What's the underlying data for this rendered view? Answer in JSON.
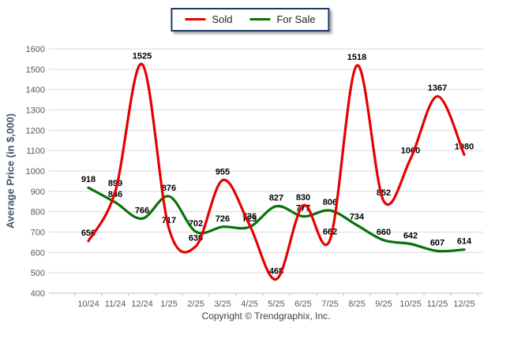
{
  "legend": {
    "items": [
      {
        "label": "Sold",
        "color": "#e60000"
      },
      {
        "label": "For Sale",
        "color": "#077307"
      }
    ],
    "border_color": "#1f3864"
  },
  "y_axis_title": "Average Price (in $,000)",
  "footer": "Copyright © Trendgraphix, Inc.",
  "chart_data": {
    "type": "line",
    "title": "",
    "xlabel": "",
    "ylabel": "Average Price (in $,000)",
    "categories": [
      "10/24",
      "11/24",
      "12/24",
      "1/25",
      "2/25",
      "3/25",
      "4/25",
      "5/25",
      "6/25",
      "7/25",
      "8/25",
      "9/25",
      "10/25",
      "11/25",
      "12/25"
    ],
    "series": [
      {
        "name": "Sold",
        "color": "#e60000",
        "values": [
          656,
          899,
          1525,
          717,
          630,
          955,
          736,
          468,
          830,
          662,
          1518,
          852,
          1060,
          1367,
          1080
        ]
      },
      {
        "name": "For Sale",
        "color": "#077307",
        "values": [
          918,
          846,
          766,
          876,
          702,
          726,
          725,
          827,
          777,
          806,
          734,
          660,
          642,
          607,
          614
        ]
      }
    ],
    "ylim": [
      400,
      1600
    ],
    "ytick_step": 100,
    "grid": "horizontal",
    "smooth": true,
    "legend_position": "top-center",
    "colors": {
      "gridline": "#d9d9d9",
      "axis_line": "#c0c0c0",
      "tick_label": "#595959",
      "data_label": "#000000"
    }
  }
}
